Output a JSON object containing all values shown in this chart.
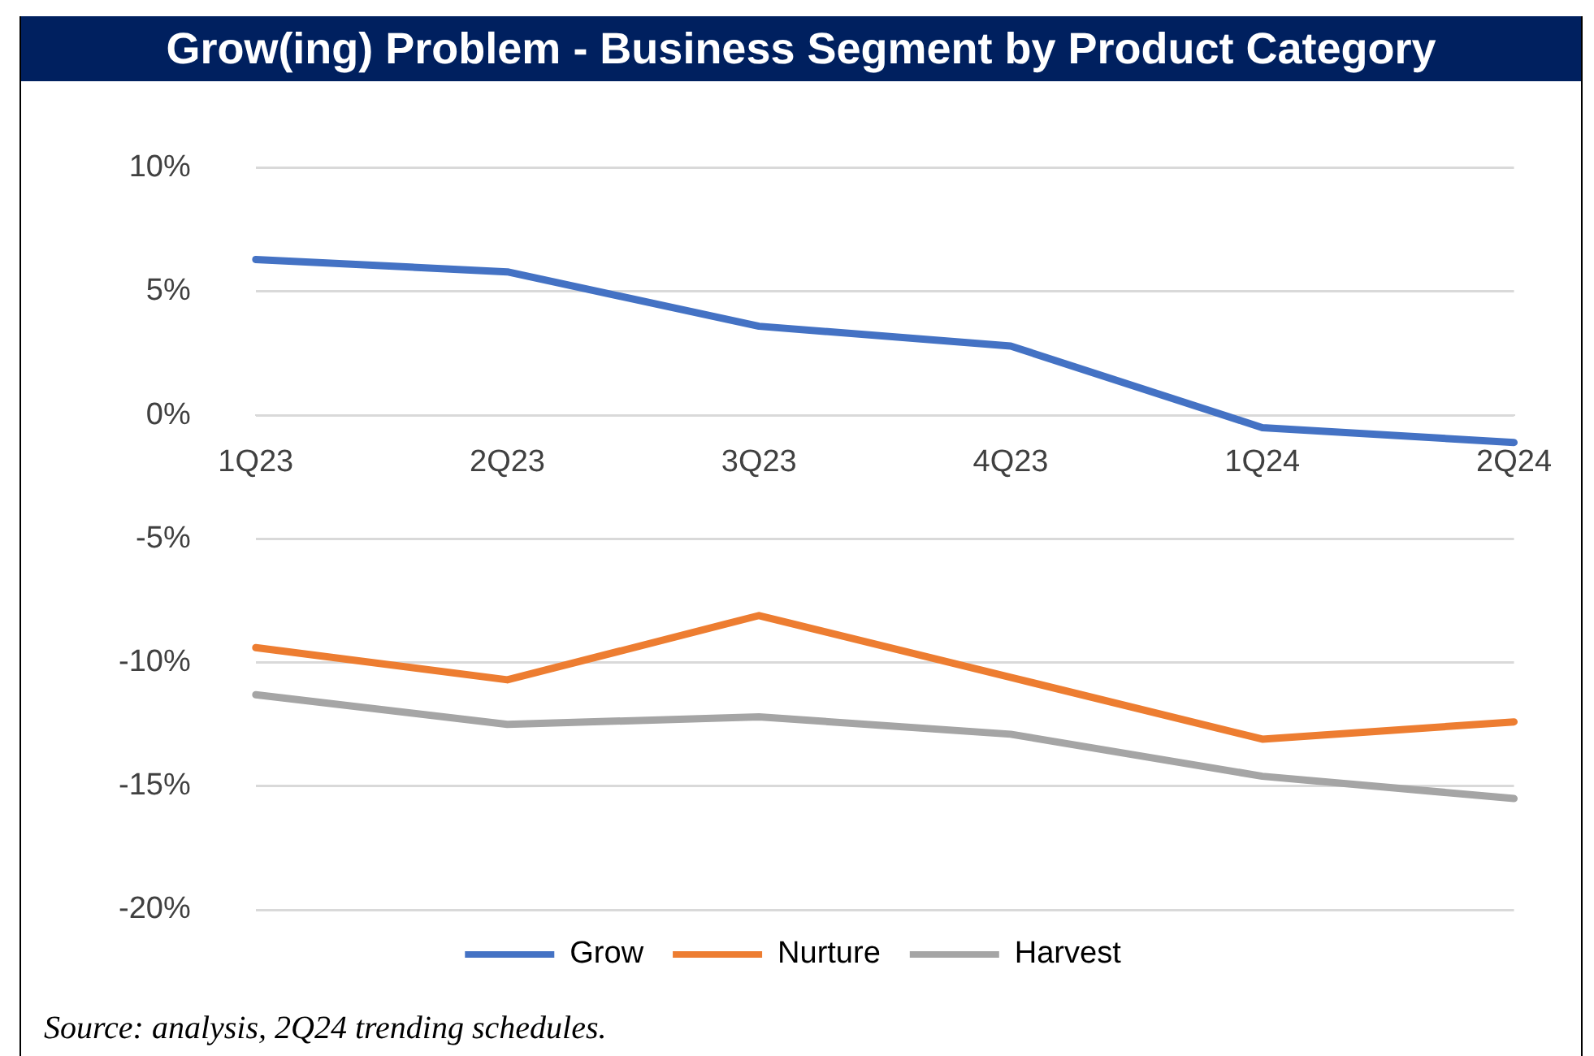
{
  "chart_data": {
    "type": "line",
    "title": "Grow(ing) Problem - Business Segment by Product Category",
    "categories": [
      "1Q23",
      "2Q23",
      "3Q23",
      "4Q23",
      "1Q24",
      "2Q24"
    ],
    "series": [
      {
        "name": "Grow",
        "color": "#4472c4",
        "values": [
          6.3,
          5.8,
          3.6,
          2.8,
          -0.5,
          -1.1
        ]
      },
      {
        "name": "Nurture",
        "color": "#ed7d31",
        "values": [
          -9.4,
          -10.7,
          -8.1,
          -10.6,
          -13.1,
          -12.4
        ]
      },
      {
        "name": "Harvest",
        "color": "#a5a5a5",
        "values": [
          -11.3,
          -12.5,
          -12.2,
          -12.9,
          -14.6,
          -15.5
        ]
      }
    ],
    "ylim": [
      -20,
      10
    ],
    "yticks": [
      {
        "value": -20,
        "label": "-20%"
      },
      {
        "value": -15,
        "label": "-15%"
      },
      {
        "value": -10,
        "label": "-10%"
      },
      {
        "value": -5,
        "label": "-5%"
      },
      {
        "value": 0,
        "label": "0%"
      },
      {
        "value": 5,
        "label": "5%"
      },
      {
        "value": 10,
        "label": "10%"
      }
    ],
    "grid": "y",
    "legend": "bottom",
    "marker": "none",
    "line_style": "solid",
    "annotations": [
      "Source: analysis, 2Q24 trending schedules."
    ]
  }
}
